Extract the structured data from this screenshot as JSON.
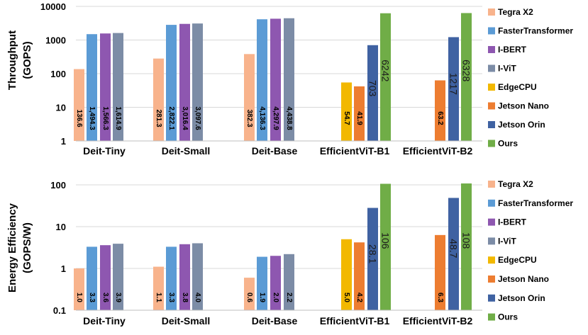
{
  "chart_data": [
    {
      "type": "bar",
      "yscale": "log",
      "ylabel_line1": "Throughput",
      "ylabel_line2": "(GOPS)",
      "ylim": [
        1,
        10000
      ],
      "yticks": [
        "1",
        "10",
        "100",
        "1000",
        "10000"
      ],
      "ytick_values": [
        1,
        10,
        100,
        1000,
        10000
      ],
      "categories": [
        "Deit-Tiny",
        "Deit-Small",
        "Deit-Base",
        "EfficientViT-B1",
        "EfficientViT-B2"
      ],
      "series": [
        {
          "name": "Tegra X2",
          "color": "#F8B38C",
          "values": [
            136.6,
            281.3,
            382.3,
            null,
            null
          ],
          "labels": [
            "136.6",
            "281.3",
            "382.3",
            null,
            null
          ]
        },
        {
          "name": "FasterTransformer",
          "color": "#5B9BD5",
          "values": [
            1494.3,
            2822.1,
            4136.3,
            null,
            null
          ],
          "labels": [
            "1,494.3",
            "2,822.1",
            "4,136.3",
            null,
            null
          ]
        },
        {
          "name": "I-BERT",
          "color": "#8E57B0",
          "values": [
            1566.3,
            3016.4,
            4297.9,
            null,
            null
          ],
          "labels": [
            "1,566.3",
            "3,016.4",
            "4,297.9",
            null,
            null
          ]
        },
        {
          "name": "I-ViT",
          "color": "#7C8CA6",
          "values": [
            1614.9,
            3097.6,
            4438.8,
            null,
            null
          ],
          "labels": [
            "1,614.9",
            "3,097.6",
            "4,438.8",
            null,
            null
          ]
        },
        {
          "name": "EdgeCPU",
          "color": "#F2B800",
          "values": [
            null,
            null,
            null,
            54.7,
            null
          ],
          "labels": [
            null,
            null,
            null,
            "54.7",
            null
          ]
        },
        {
          "name": "Jetson Nano",
          "color": "#ED7D31",
          "values": [
            null,
            null,
            null,
            41.9,
            63.2
          ],
          "labels": [
            null,
            null,
            null,
            "41.9",
            "63.2"
          ]
        },
        {
          "name": "Jetson Orin",
          "color": "#3F62A2",
          "values": [
            null,
            null,
            null,
            703,
            1217
          ],
          "labels": [
            null,
            null,
            null,
            "703",
            "1217"
          ]
        },
        {
          "name": "Ours",
          "color": "#70AD47",
          "values": [
            null,
            null,
            null,
            6242,
            6328
          ],
          "labels": [
            null,
            null,
            null,
            "6242",
            "6328"
          ]
        }
      ]
    },
    {
      "type": "bar",
      "yscale": "log",
      "ylabel_line1": "Energy Efficiency",
      "ylabel_line2": "(GOPS/W)",
      "ylim": [
        0.1,
        100
      ],
      "yticks": [
        "0.1",
        "1",
        "10",
        "100"
      ],
      "ytick_values": [
        0.1,
        1,
        10,
        100
      ],
      "categories": [
        "Deit-Tiny",
        "Deit-Small",
        "Deit-Base",
        "EfficientViT-B1",
        "EfficientViT-B2"
      ],
      "series": [
        {
          "name": "Tegra X2",
          "color": "#F8B38C",
          "values": [
            1.0,
            1.1,
            0.6,
            null,
            null
          ],
          "labels": [
            "1.0",
            "1.1",
            "0.6",
            null,
            null
          ]
        },
        {
          "name": "FasterTransformer",
          "color": "#5B9BD5",
          "values": [
            3.3,
            3.3,
            1.9,
            null,
            null
          ],
          "labels": [
            "3.3",
            "3.3",
            "1.9",
            null,
            null
          ]
        },
        {
          "name": "I-BERT",
          "color": "#8E57B0",
          "values": [
            3.6,
            3.8,
            2.0,
            null,
            null
          ],
          "labels": [
            "3.6",
            "3.8",
            "2.0",
            null,
            null
          ]
        },
        {
          "name": "I-ViT",
          "color": "#7C8CA6",
          "values": [
            3.9,
            4.0,
            2.2,
            null,
            null
          ],
          "labels": [
            "3.9",
            "4.0",
            "2.2",
            null,
            null
          ]
        },
        {
          "name": "EdgeCPU",
          "color": "#F2B800",
          "values": [
            null,
            null,
            null,
            5.0,
            null
          ],
          "labels": [
            null,
            null,
            null,
            "5.0",
            null
          ]
        },
        {
          "name": "Jetson Nano",
          "color": "#ED7D31",
          "values": [
            null,
            null,
            null,
            4.2,
            6.3
          ],
          "labels": [
            null,
            null,
            null,
            "4.2",
            "6.3"
          ]
        },
        {
          "name": "Jetson Orin",
          "color": "#3F62A2",
          "values": [
            null,
            null,
            null,
            28.1,
            48.7
          ],
          "labels": [
            null,
            null,
            null,
            "28.1",
            "48.7"
          ]
        },
        {
          "name": "Ours",
          "color": "#70AD47",
          "values": [
            null,
            null,
            null,
            106,
            108
          ],
          "labels": [
            null,
            null,
            null,
            "106",
            "108"
          ]
        }
      ]
    }
  ]
}
